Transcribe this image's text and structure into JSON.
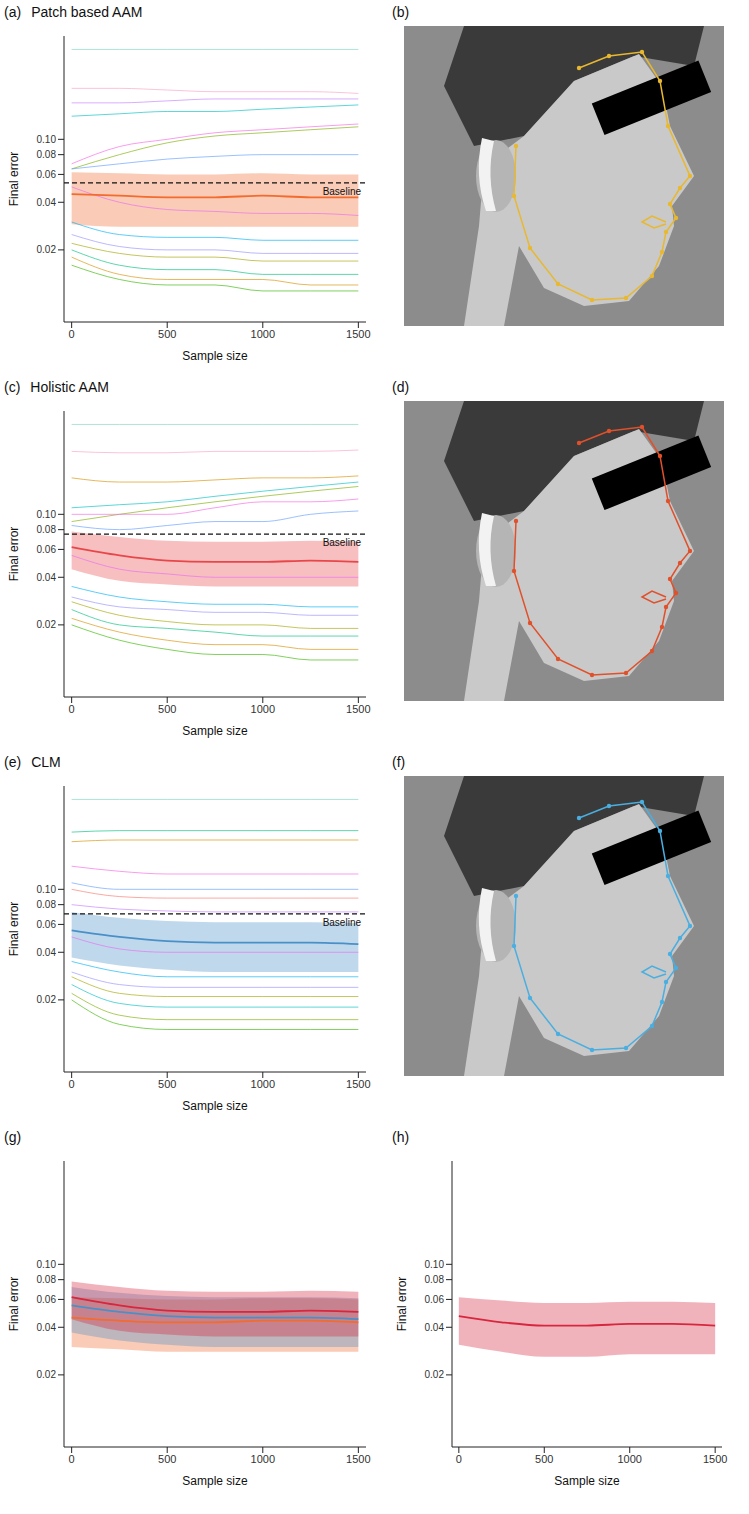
{
  "chart_data": [
    {
      "type": "line",
      "label": "(a)",
      "title": "Patch based AAM",
      "x_label": "Sample size",
      "y_label": "Final error",
      "log": "y",
      "x": [
        0,
        250,
        500,
        750,
        1000,
        1250,
        1500
      ],
      "xlim": [
        -40,
        1540
      ],
      "xticks": [
        0,
        500,
        1000,
        1500
      ],
      "ylim": [
        0.007,
        0.45
      ],
      "yticks": [
        0.02,
        0.04,
        0.06,
        0.08,
        {
          "value": 0.1,
          "label": "0.10"
        }
      ],
      "baseline": {
        "value": 0.053,
        "label": "Baseline"
      },
      "bands": [
        {
          "color": "#f26b2f",
          "mean": [
            0.045,
            0.044,
            0.043,
            0.043,
            0.044,
            0.043,
            0.043
          ],
          "lower": [
            0.029,
            0.028,
            0.028,
            0.028,
            0.028,
            0.028,
            0.028
          ],
          "upper": [
            0.062,
            0.061,
            0.06,
            0.06,
            0.061,
            0.06,
            0.06
          ]
        }
      ],
      "series": [
        {
          "color": "#7fd4c1",
          "values": [
            0.37,
            0.37,
            0.37,
            0.37,
            0.37,
            0.37,
            0.37
          ]
        },
        {
          "color": "#f8a0c8",
          "values": [
            0.21,
            0.21,
            0.205,
            0.2,
            0.2,
            0.2,
            0.195
          ]
        },
        {
          "color": "#c77cff",
          "values": [
            0.17,
            0.17,
            0.175,
            0.18,
            0.18,
            0.18,
            0.18
          ]
        },
        {
          "color": "#00bfc4",
          "values": [
            0.14,
            0.145,
            0.15,
            0.15,
            0.155,
            0.16,
            0.165
          ]
        },
        {
          "color": "#7cae00",
          "values": [
            0.065,
            0.08,
            0.095,
            0.105,
            0.11,
            0.115,
            0.12
          ]
        },
        {
          "color": "#f564e3",
          "values": [
            0.07,
            0.09,
            0.1,
            0.11,
            0.115,
            0.12,
            0.125
          ]
        },
        {
          "color": "#619cff",
          "values": [
            0.065,
            0.07,
            0.075,
            0.078,
            0.08,
            0.08,
            0.08
          ]
        },
        {
          "color": "#e76bf3",
          "values": [
            0.05,
            0.04,
            0.036,
            0.035,
            0.034,
            0.034,
            0.033
          ]
        },
        {
          "color": "#00b0f6",
          "values": [
            0.03,
            0.025,
            0.024,
            0.024,
            0.023,
            0.023,
            0.023
          ]
        },
        {
          "color": "#9590ff",
          "values": [
            0.025,
            0.021,
            0.02,
            0.02,
            0.019,
            0.019,
            0.019
          ]
        },
        {
          "color": "#a3a500",
          "values": [
            0.022,
            0.019,
            0.018,
            0.018,
            0.017,
            0.017,
            0.017
          ]
        },
        {
          "color": "#00bf7d",
          "values": [
            0.02,
            0.016,
            0.015,
            0.015,
            0.014,
            0.014,
            0.014
          ]
        },
        {
          "color": "#d89000",
          "values": [
            0.018,
            0.014,
            0.013,
            0.013,
            0.013,
            0.012,
            0.012
          ]
        },
        {
          "color": "#39b600",
          "values": [
            0.016,
            0.013,
            0.012,
            0.012,
            0.011,
            0.011,
            0.011
          ]
        }
      ]
    },
    {
      "type": "image",
      "label": "(b)",
      "landmark_color": "#e8b830"
    },
    {
      "type": "line",
      "label": "(c)",
      "title": "Holistic AAM",
      "x_label": "Sample size",
      "y_label": "Final error",
      "log": "y",
      "x": [
        0,
        250,
        500,
        750,
        1000,
        1250,
        1500
      ],
      "xlim": [
        -40,
        1540
      ],
      "xticks": [
        0,
        500,
        1000,
        1500
      ],
      "ylim": [
        0.007,
        0.45
      ],
      "yticks": [
        0.02,
        0.04,
        0.06,
        0.08,
        {
          "value": 0.1,
          "label": "0.10"
        }
      ],
      "baseline": {
        "value": 0.075,
        "label": "Baseline"
      },
      "bands": [
        {
          "color": "#e8474a",
          "mean": [
            0.062,
            0.055,
            0.051,
            0.05,
            0.05,
            0.051,
            0.05
          ],
          "lower": [
            0.045,
            0.038,
            0.036,
            0.035,
            0.035,
            0.035,
            0.035
          ],
          "upper": [
            0.078,
            0.072,
            0.068,
            0.067,
            0.067,
            0.068,
            0.067
          ]
        }
      ],
      "series": [
        {
          "color": "#7fd4c1",
          "values": [
            0.37,
            0.37,
            0.37,
            0.37,
            0.37,
            0.37,
            0.37
          ]
        },
        {
          "color": "#f8a0c8",
          "values": [
            0.25,
            0.245,
            0.245,
            0.25,
            0.25,
            0.25,
            0.255
          ]
        },
        {
          "color": "#d89000",
          "values": [
            0.17,
            0.16,
            0.16,
            0.165,
            0.17,
            0.17,
            0.175
          ]
        },
        {
          "color": "#00bfc4",
          "values": [
            0.11,
            0.115,
            0.12,
            0.13,
            0.14,
            0.15,
            0.16
          ]
        },
        {
          "color": "#7cae00",
          "values": [
            0.09,
            0.1,
            0.11,
            0.12,
            0.13,
            0.14,
            0.15
          ]
        },
        {
          "color": "#f564e3",
          "values": [
            0.1,
            0.1,
            0.1,
            0.11,
            0.12,
            0.12,
            0.125
          ]
        },
        {
          "color": "#619cff",
          "values": [
            0.085,
            0.08,
            0.085,
            0.09,
            0.09,
            0.1,
            0.105
          ]
        },
        {
          "color": "#e76bf3",
          "values": [
            0.055,
            0.045,
            0.042,
            0.04,
            0.04,
            0.04,
            0.04
          ]
        },
        {
          "color": "#00b0f6",
          "values": [
            0.035,
            0.03,
            0.028,
            0.027,
            0.027,
            0.026,
            0.026
          ]
        },
        {
          "color": "#9590ff",
          "values": [
            0.03,
            0.026,
            0.025,
            0.024,
            0.024,
            0.023,
            0.023
          ]
        },
        {
          "color": "#a3a500",
          "values": [
            0.028,
            0.023,
            0.021,
            0.02,
            0.02,
            0.019,
            0.019
          ]
        },
        {
          "color": "#00bf7d",
          "values": [
            0.025,
            0.02,
            0.019,
            0.018,
            0.017,
            0.017,
            0.017
          ]
        },
        {
          "color": "#d89000",
          "values": [
            0.022,
            0.018,
            0.016,
            0.015,
            0.015,
            0.014,
            0.014
          ]
        },
        {
          "color": "#39b600",
          "values": [
            0.02,
            0.016,
            0.014,
            0.013,
            0.013,
            0.012,
            0.012
          ]
        }
      ]
    },
    {
      "type": "image",
      "label": "(d)",
      "landmark_color": "#e0502a"
    },
    {
      "type": "line",
      "label": "(e)",
      "title": "CLM",
      "x_label": "Sample size",
      "y_label": "Final error",
      "log": "y",
      "x": [
        0,
        250,
        500,
        750,
        1000,
        1250,
        1500
      ],
      "xlim": [
        -40,
        1540
      ],
      "xticks": [
        0,
        500,
        1000,
        1500
      ],
      "ylim": [
        0.007,
        0.45
      ],
      "yticks": [
        0.02,
        0.04,
        0.06,
        0.08,
        {
          "value": 0.1,
          "label": "0.10"
        }
      ],
      "baseline": {
        "value": 0.07,
        "label": "Baseline"
      },
      "bands": [
        {
          "color": "#4a90c8",
          "mean": [
            0.055,
            0.05,
            0.047,
            0.046,
            0.046,
            0.046,
            0.045
          ],
          "lower": [
            0.037,
            0.033,
            0.031,
            0.03,
            0.03,
            0.03,
            0.03
          ],
          "upper": [
            0.072,
            0.066,
            0.063,
            0.062,
            0.062,
            0.062,
            0.061
          ]
        }
      ],
      "series": [
        {
          "color": "#7fd4c1",
          "values": [
            0.37,
            0.37,
            0.37,
            0.37,
            0.37,
            0.37,
            0.37
          ]
        },
        {
          "color": "#00bf7d",
          "values": [
            0.23,
            0.235,
            0.235,
            0.235,
            0.235,
            0.235,
            0.235
          ]
        },
        {
          "color": "#d89000",
          "values": [
            0.2,
            0.205,
            0.205,
            0.205,
            0.205,
            0.205,
            0.205
          ]
        },
        {
          "color": "#f564e3",
          "values": [
            0.14,
            0.13,
            0.125,
            0.125,
            0.125,
            0.125,
            0.125
          ]
        },
        {
          "color": "#619cff",
          "values": [
            0.11,
            0.1,
            0.1,
            0.1,
            0.1,
            0.1,
            0.1
          ]
        },
        {
          "color": "#f8766d",
          "values": [
            0.1,
            0.09,
            0.088,
            0.088,
            0.088,
            0.088,
            0.088
          ]
        },
        {
          "color": "#c77cff",
          "values": [
            0.08,
            0.075,
            0.073,
            0.072,
            0.072,
            0.072,
            0.072
          ]
        },
        {
          "color": "#e76bf3",
          "values": [
            0.05,
            0.042,
            0.04,
            0.04,
            0.04,
            0.04,
            0.04
          ]
        },
        {
          "color": "#00b0f6",
          "values": [
            0.035,
            0.03,
            0.028,
            0.028,
            0.028,
            0.028,
            0.028
          ]
        },
        {
          "color": "#9590ff",
          "values": [
            0.03,
            0.025,
            0.024,
            0.024,
            0.024,
            0.024,
            0.024
          ]
        },
        {
          "color": "#a3a500",
          "values": [
            0.028,
            0.022,
            0.021,
            0.021,
            0.021,
            0.021,
            0.021
          ]
        },
        {
          "color": "#00bfc4",
          "values": [
            0.025,
            0.019,
            0.018,
            0.018,
            0.018,
            0.018,
            0.018
          ]
        },
        {
          "color": "#7cae00",
          "values": [
            0.022,
            0.016,
            0.015,
            0.015,
            0.015,
            0.015,
            0.015
          ]
        },
        {
          "color": "#39b600",
          "values": [
            0.02,
            0.014,
            0.013,
            0.013,
            0.013,
            0.013,
            0.013
          ]
        }
      ]
    },
    {
      "type": "image",
      "label": "(f)",
      "landmark_color": "#4aaee0"
    },
    {
      "type": "line",
      "label": "(g)",
      "x_label": "Sample size",
      "y_label": "Final error",
      "log": "y",
      "x": [
        0,
        250,
        500,
        750,
        1000,
        1250,
        1500
      ],
      "xlim": [
        -40,
        1540
      ],
      "xticks": [
        0,
        500,
        1000,
        1500
      ],
      "ylim": [
        0.007,
        0.45
      ],
      "yticks": [
        0.02,
        0.04,
        0.06,
        0.08,
        {
          "value": 0.1,
          "label": "0.10"
        }
      ],
      "bands": [
        {
          "color": "#f26b2f",
          "mean": [
            0.046,
            0.044,
            0.043,
            0.043,
            0.044,
            0.044,
            0.043
          ],
          "lower": [
            0.03,
            0.029,
            0.028,
            0.028,
            0.028,
            0.028,
            0.028
          ],
          "upper": [
            0.062,
            0.061,
            0.06,
            0.06,
            0.061,
            0.061,
            0.06
          ]
        },
        {
          "color": "#4a90c8",
          "mean": [
            0.055,
            0.05,
            0.047,
            0.046,
            0.046,
            0.046,
            0.045
          ],
          "lower": [
            0.037,
            0.033,
            0.031,
            0.03,
            0.03,
            0.03,
            0.03
          ],
          "upper": [
            0.072,
            0.066,
            0.063,
            0.062,
            0.062,
            0.062,
            0.061
          ]
        },
        {
          "color": "#d7263d",
          "mean": [
            0.062,
            0.055,
            0.051,
            0.05,
            0.05,
            0.051,
            0.05
          ],
          "lower": [
            0.045,
            0.038,
            0.036,
            0.035,
            0.035,
            0.035,
            0.035
          ],
          "upper": [
            0.078,
            0.072,
            0.068,
            0.067,
            0.067,
            0.068,
            0.067
          ]
        }
      ]
    },
    {
      "type": "line",
      "label": "(h)",
      "x_label": "Sample size",
      "y_label": "Final error",
      "log": "y",
      "x": [
        0,
        250,
        500,
        750,
        1000,
        1250,
        1500
      ],
      "xlim": [
        -40,
        1540
      ],
      "xticks": [
        0,
        500,
        1000,
        1500
      ],
      "ylim": [
        0.007,
        0.45
      ],
      "yticks": [
        0.02,
        0.04,
        0.06,
        0.08,
        {
          "value": 0.1,
          "label": "0.10"
        }
      ],
      "bands": [
        {
          "color": "#d7263d",
          "mean": [
            0.047,
            0.043,
            0.041,
            0.041,
            0.042,
            0.042,
            0.041
          ],
          "lower": [
            0.031,
            0.028,
            0.026,
            0.026,
            0.027,
            0.027,
            0.027
          ],
          "upper": [
            0.062,
            0.059,
            0.057,
            0.057,
            0.058,
            0.058,
            0.057
          ]
        }
      ]
    }
  ]
}
